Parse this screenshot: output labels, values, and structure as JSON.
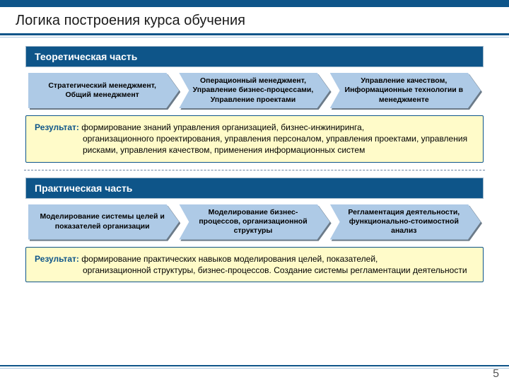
{
  "title": "Логика построения курса обучения",
  "pageNumber": "5",
  "colors": {
    "primary": "#0e5589",
    "arrowFill": "#aecae6",
    "resultBg": "#fffbc9",
    "shadow": "#6b7a88"
  },
  "sections": [
    {
      "header": "Теоретическая часть",
      "arrows": [
        "Стратегический менеджмент, Общий менеджмент",
        "Операционный менеджмент, Управление бизнес-процессами, Управление проектами",
        "Управление качеством, Информационные технологии в менеджменте"
      ],
      "resultLabel": "Результат:",
      "resultLine1": " формирование знаний управления организацией, бизнес-инжиниринга,",
      "resultCont": "организационного проектирования, управления персоналом, управления проектами, управления рисками, управления качеством, применения информационных систем"
    },
    {
      "header": "Практическая часть",
      "arrows": [
        "Моделирование системы целей и показателей организации",
        "Моделирование бизнес-процессов, организационной структуры",
        "Регламентация деятельности, функционально-стоимостной анализ"
      ],
      "resultLabel": "Результат:",
      "resultLine1": " формирование практических навыков моделирования целей, показателей,",
      "resultCont": "организационной структуры, бизнес-процессов. Создание системы регламентации деятельности"
    }
  ]
}
